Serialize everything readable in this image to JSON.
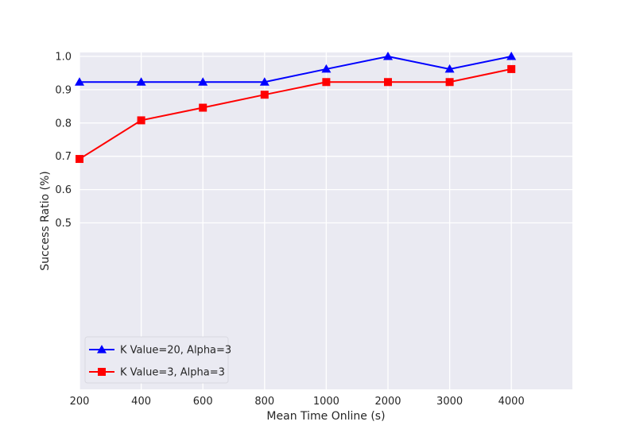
{
  "chart_data": {
    "type": "line",
    "title": "",
    "xlabel": "Mean Time Online (s)",
    "ylabel": "Success Ratio (%)",
    "categories": [
      "200",
      "400",
      "600",
      "800",
      "1000",
      "2000",
      "3000",
      "4000"
    ],
    "y_ticks": [
      "0.5",
      "0.6",
      "0.7",
      "0.8",
      "0.9",
      "1.0"
    ],
    "ylim": [
      0.0,
      1.0
    ],
    "grid": true,
    "legend_position": "lower-left",
    "series": [
      {
        "name": "K Value=20, Alpha=3",
        "color": "#0000ff",
        "marker": "triangle",
        "values": [
          0.923,
          0.923,
          0.923,
          0.923,
          0.962,
          1.0,
          0.962,
          1.0
        ]
      },
      {
        "name": "K Value=3, Alpha=3",
        "color": "#ff0000",
        "marker": "square",
        "values": [
          0.692,
          0.808,
          0.846,
          0.885,
          0.923,
          0.923,
          0.923,
          0.962
        ]
      }
    ]
  }
}
